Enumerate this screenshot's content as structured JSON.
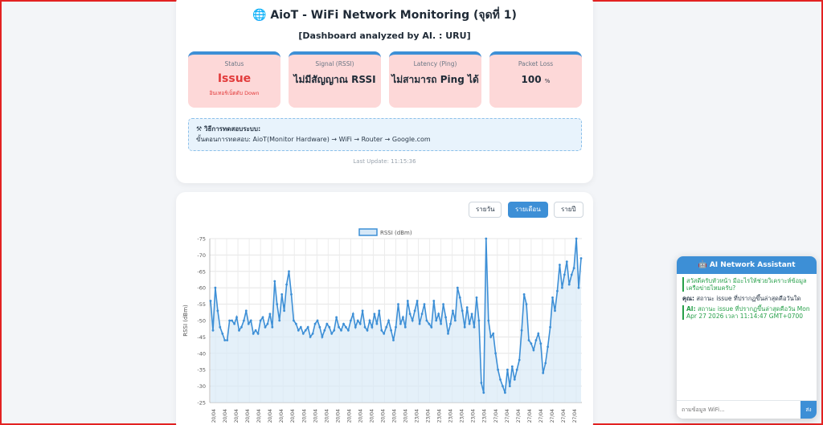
{
  "header": {
    "globe_icon": "🌐",
    "title": "AioT - WiFi Network Monitoring (จุดที่ 1)",
    "subtitle": "[Dashboard analyzed by AI. : URU]"
  },
  "stats": [
    {
      "label": "Status",
      "value": "Issue",
      "note": "อินเทอร์เน็ตดับ Down"
    },
    {
      "label": "Signal (RSSI)",
      "value": "ไม่มีสัญญาณ RSSI"
    },
    {
      "label": "Latency (Ping)",
      "value": "ไม่สามารถ Ping ได้"
    },
    {
      "label": "Packet Loss",
      "value": "100",
      "unit": "%"
    }
  ],
  "test": {
    "heading": "วิธีการทดสอบระบบ:",
    "steps": "ขั้นตอนการทดสอบ: AioT(Monitor Hardware) → WiFi → Router → Google.com"
  },
  "last_update": "Last Update: 11:15:36",
  "range_buttons": [
    "รายวัน",
    "รายเดือน",
    "รายปี"
  ],
  "active_range": "รายเดือน",
  "colors": {
    "accent": "#3d8fd6",
    "issue": "#e23b3b",
    "card_bad": "#fdd8d8"
  },
  "chart_data": {
    "type": "line",
    "legend": "RSSI (dBm)",
    "ylabel": "RSSI (dBm)",
    "ylim": [
      -25,
      -75
    ],
    "yticks": [
      -75,
      -70,
      -65,
      -60,
      -55,
      -50,
      -45,
      -40,
      -35,
      -30,
      -25
    ],
    "xticks": [
      "20/04",
      "20/04",
      "20/04",
      "20/04",
      "20/04",
      "20/04",
      "20/04",
      "20/04",
      "20/04",
      "20/04",
      "20/04",
      "20/04",
      "20/04",
      "20/04",
      "20/04",
      "20/04",
      "20/04",
      "20/04",
      "23/04",
      "23/04",
      "23/04",
      "23/04",
      "23/04",
      "23/04",
      "23/04",
      "27/04",
      "27/04",
      "27/04",
      "27/04",
      "27/04",
      "27/04",
      "27/04",
      "27/04"
    ],
    "values": [
      -56,
      -47,
      -60,
      -53,
      -48,
      -46,
      -44,
      -44,
      -50,
      -50,
      -49,
      -51,
      -47,
      -48,
      -50,
      -53,
      -49,
      -50,
      -46,
      -47,
      -46,
      -50,
      -51,
      -48,
      -49,
      -52,
      -48,
      -62,
      -55,
      -50,
      -58,
      -53,
      -61,
      -65,
      -58,
      -50,
      -49,
      -47,
      -48,
      -46,
      -47,
      -48,
      -45,
      -46,
      -49,
      -50,
      -48,
      -45,
      -47,
      -49,
      -48,
      -46,
      -47,
      -51,
      -48,
      -47,
      -49,
      -48,
      -47,
      -50,
      -52,
      -48,
      -50,
      -49,
      -53,
      -48,
      -47,
      -50,
      -48,
      -52,
      -49,
      -53,
      -47,
      -46,
      -48,
      -50,
      -47,
      -44,
      -48,
      -55,
      -49,
      -51,
      -48,
      -56,
      -52,
      -50,
      -53,
      -56,
      -49,
      -52,
      -55,
      -50,
      -49,
      -48,
      -56,
      -50,
      -52,
      -49,
      -55,
      -51,
      -46,
      -49,
      -53,
      -50,
      -60,
      -57,
      -53,
      -48,
      -54,
      -49,
      -52,
      -48,
      -57,
      -50,
      -31,
      -28,
      -75,
      -50,
      -45,
      -46,
      -40,
      -35,
      -32,
      -30,
      -28,
      -35,
      -30,
      -36,
      -32,
      -35,
      -38,
      -47,
      -58,
      -55,
      -44,
      -43,
      -41,
      -44,
      -46,
      -43,
      -34,
      -37,
      -42,
      -48,
      -57,
      -53,
      -59,
      -67,
      -60,
      -64,
      -68,
      -61,
      -64,
      -66,
      -75,
      -60,
      -69
    ]
  },
  "assistant": {
    "title": "AI Network Assistant",
    "robot_icon": "🤖",
    "greeting": "สวัสดีครับหัวหน้า มีอะไรให้ช่วยวิเคราะห์ข้อมูลเครือข่ายไหมครับ?",
    "user_label": "คุณ:",
    "user_msg": "สถานะ issue ที่ปรากฏขึ้นล่าสุดคือวันใด",
    "ai_label": "AI:",
    "ai_msg": "สถานะ issue ที่ปรากฏขึ้นล่าสุดคือวัน Mon Apr 27 2026 เวลา 11:14:47 GMT+0700",
    "input_placeholder": "ถามข้อมูล WiFi...",
    "send_label": "ส่ง"
  }
}
